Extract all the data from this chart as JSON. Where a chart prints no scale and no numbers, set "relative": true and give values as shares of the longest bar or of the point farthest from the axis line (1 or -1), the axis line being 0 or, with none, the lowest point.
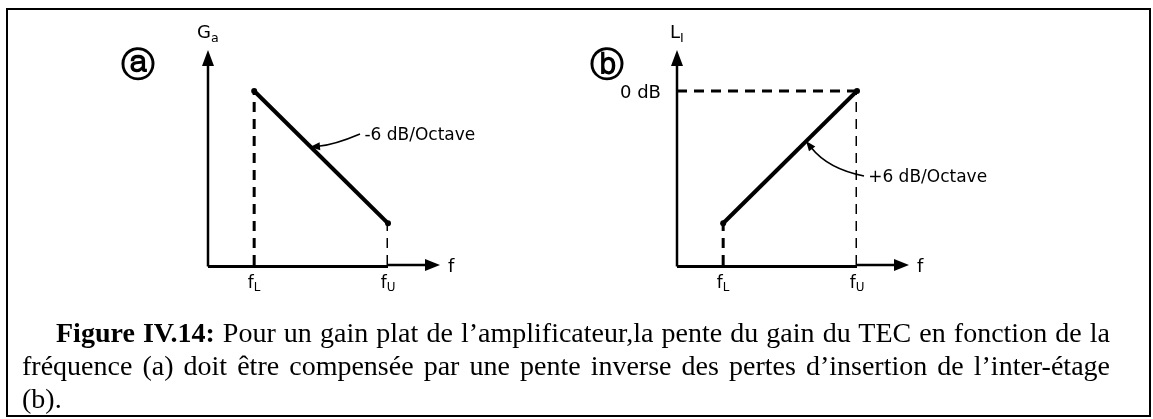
{
  "chart_data": [
    {
      "type": "line",
      "title": "ⓐ",
      "xlabel": "f",
      "ylabel": "G$_{a}$",
      "categories": [
        "f$_{L}$",
        "f$_{U}$"
      ],
      "series": [
        {
          "color": "#000000",
          "values": [
            1,
            0.24
          ]
        },
        {
          "type": "lollipop",
          "color": "#000000",
          "line_style": "dashed",
          "values": [
            1,
            0.24
          ]
        }
      ],
      "relative": true,
      "line_style": "solid",
      "annotations": [
        "-6 dB/Octave"
      ]
    },
    {
      "type": "line",
      "title": "ⓑ",
      "xlabel": "f",
      "ylabel": "L$_{I}$",
      "categories": [
        "f$_{L}$",
        "f$_{U}$"
      ],
      "series": [
        {
          "color": "#000000",
          "values": [
            0.24,
            1
          ]
        },
        {
          "type": "lollipop",
          "color": "#000000",
          "line_style": "dashed",
          "values": [
            0.24,
            1
          ]
        }
      ],
      "relative": true,
      "line_style": "solid",
      "ref_lines": [
        {
          "axis": "y",
          "value": 1,
          "label": "0 dB",
          "line_style": "dashed",
          "color": "#000000"
        }
      ],
      "annotations": [
        "+6 dB/Octave",
        "Figure IV.14: Pour un gain plat de l’amplificateur,la pente du gain du TEC en fonction de la fréquence (a) doit être compensée par une pente inverse des pertes d’insertion de l’inter-étage (b)."
      ]
    }
  ]
}
